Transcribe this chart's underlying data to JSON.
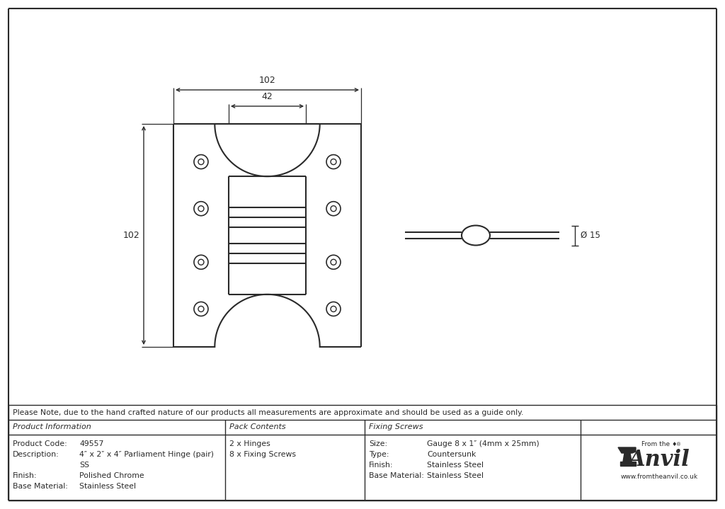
{
  "bg_color": "#ffffff",
  "line_color": "#2a2a2a",
  "dim_color": "#2a2a2a",
  "note_text": "Please Note, due to the hand crafted nature of our products all measurements are approximate and should be used as a guide only.",
  "table_data": {
    "col1_header": "Product Information",
    "col2_header": "Pack Contents",
    "col3_header": "Fixing Screws",
    "col1_rows": [
      [
        "Product Code:",
        "49557"
      ],
      [
        "Description:",
        "4″ x 2″ x 4″ Parliament Hinge (pair)"
      ],
      [
        "",
        "SS"
      ],
      [
        "Finish:",
        "Polished Chrome"
      ],
      [
        "Base Material:",
        "Stainless Steel"
      ]
    ],
    "col2_rows": [
      "2 x Hinges",
      "8 x Fixing Screws"
    ],
    "col3_rows": [
      [
        "Size:",
        "Gauge 8 x 1″ (4mm x 25mm)"
      ],
      [
        "Type:",
        "Countersunk"
      ],
      [
        "Finish:",
        "Stainless Steel"
      ],
      [
        "Base Material:",
        "Stainless Steel"
      ]
    ]
  },
  "dim_102_width": "102",
  "dim_42_width": "42",
  "dim_102_height": "102",
  "dim_15": "Ø 15"
}
